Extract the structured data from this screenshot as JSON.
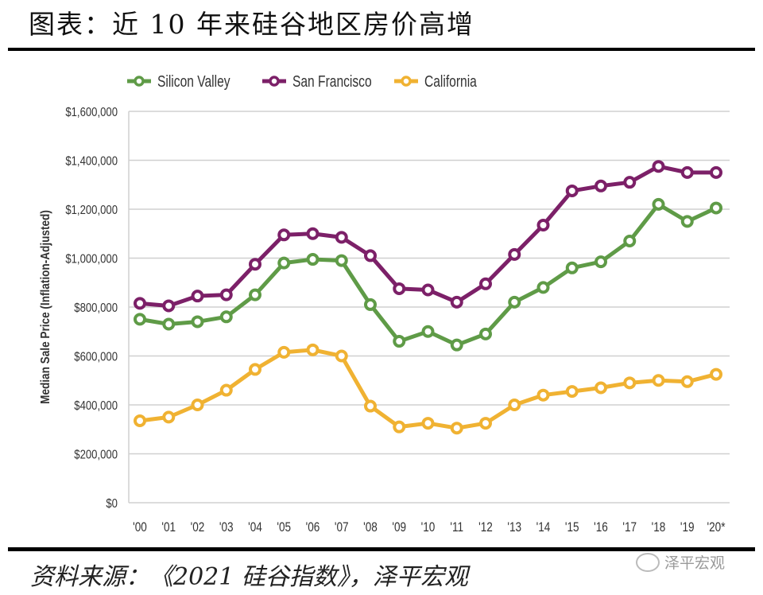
{
  "header": {
    "title": "图表：近 10 年来硅谷地区房价高增"
  },
  "footer": {
    "source": "资料来源：《2021 硅谷指数》，泽平宏观",
    "watermark": "泽平宏观"
  },
  "chart_data": {
    "type": "line",
    "title": "图表：近 10 年来硅谷地区房价高增",
    "xlabel": "",
    "ylabel": "Median Sale Price (Inflation-Adjusted)",
    "ylim": [
      0,
      1600000
    ],
    "yticks": [
      0,
      200000,
      400000,
      600000,
      800000,
      1000000,
      1200000,
      1400000,
      1600000
    ],
    "ytick_labels": [
      "$0",
      "$200,000",
      "$400,000",
      "$600,000",
      "$800,000",
      "$1,000,000",
      "$1,200,000",
      "$1,400,000",
      "$1,600,000"
    ],
    "categories": [
      "'00",
      "'01",
      "'02",
      "'03",
      "'04",
      "'05",
      "'06",
      "'07",
      "'08",
      "'09",
      "'10",
      "'11",
      "'12",
      "'13",
      "'14",
      "'15",
      "'16",
      "'17",
      "'18",
      "'19",
      "'20*"
    ],
    "grid": true,
    "legend_position": "top-left",
    "series": [
      {
        "name": "Silicon Valley",
        "color": "#5f9b47",
        "values": [
          750000,
          730000,
          740000,
          760000,
          850000,
          980000,
          995000,
          990000,
          810000,
          660000,
          700000,
          645000,
          690000,
          820000,
          880000,
          960000,
          985000,
          1070000,
          1220000,
          1150000,
          1205000
        ]
      },
      {
        "name": "San Francisco",
        "color": "#7c2068",
        "values": [
          815000,
          805000,
          845000,
          850000,
          975000,
          1095000,
          1100000,
          1085000,
          1010000,
          875000,
          870000,
          820000,
          895000,
          1015000,
          1135000,
          1275000,
          1295000,
          1310000,
          1375000,
          1350000,
          1350000
        ]
      },
      {
        "name": "California",
        "color": "#f0b232",
        "values": [
          335000,
          350000,
          400000,
          460000,
          545000,
          615000,
          625000,
          600000,
          395000,
          310000,
          325000,
          305000,
          325000,
          400000,
          440000,
          455000,
          470000,
          490000,
          500000,
          495000,
          525000
        ]
      }
    ]
  }
}
